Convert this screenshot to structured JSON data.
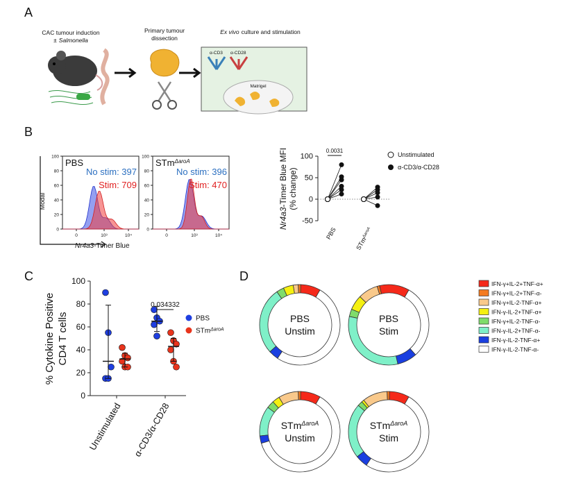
{
  "panel_a": {
    "label": "A",
    "induction": "CAC tumour induction",
    "salmonella_prefix": "±",
    "salmonella": "Salmonella",
    "dissection": [
      "Primary tumour",
      "dissection"
    ],
    "culture_italic": "Ex vivo",
    "culture": "culture and stimulation",
    "antibodies": [
      "α-CD3",
      "α-CD28"
    ],
    "matrigel": "Matrigel"
  },
  "panel_b": {
    "label": "B",
    "histograms": [
      {
        "title": "PBS",
        "no_stim": "No stim: 397",
        "stim": "Stim: 709"
      },
      {
        "title": "STm",
        "title_sup": "ΔaroA",
        "no_stim": "No stim: 396",
        "stim": "Stim: 470"
      }
    ],
    "hist_ylim": [
      0,
      100
    ],
    "hist_yticks": [
      0,
      20,
      40,
      60,
      80,
      100
    ],
    "hist_xticks": [
      "0",
      "10³",
      "10⁴"
    ],
    "y_label": "Modal",
    "x_label_italic": "Nr4a3",
    "x_label": "-Timer Blue",
    "mfi": {
      "y_label_italic": "Nr4a3",
      "y_label": "-Timer Blue MFI",
      "y_label2": "(% change)",
      "ylim": [
        -50,
        100
      ],
      "yticks": [
        -50,
        0,
        50,
        100
      ],
      "groups": [
        {
          "name": "PBS",
          "unstimulated": [
            0,
            0,
            0,
            0,
            0,
            0
          ],
          "stimulated": [
            80,
            52,
            45,
            30,
            22,
            12
          ]
        },
        {
          "name": "STm",
          "name_sup": "ΔaroA",
          "unstimulated": [
            0,
            0,
            0,
            0,
            0
          ],
          "stimulated": [
            28,
            22,
            15,
            5,
            -15
          ]
        }
      ],
      "p_value": "0.0031",
      "legend": [
        "Unstimulated",
        "α-CD3/α-CD28"
      ]
    }
  },
  "panel_c": {
    "label": "C",
    "y_label": [
      "% Cytokine Positive",
      "CD4 T cells"
    ],
    "ylim": [
      0,
      100
    ],
    "yticks": [
      0,
      20,
      40,
      60,
      80,
      100
    ],
    "categories": [
      "Unstimulated",
      "α-CD3/α-CD28"
    ],
    "series": [
      {
        "name": "PBS",
        "color": "#1f3fe0",
        "values": [
          [
            90,
            55,
            25,
            15,
            15
          ],
          [
            75,
            68,
            65,
            62,
            52
          ]
        ],
        "center": [
          30,
          65
        ],
        "low": [
          15,
          56
        ],
        "high": [
          79,
          78
        ]
      },
      {
        "name": "STm",
        "name_sup": "ΔaroA",
        "color": "#e8341c",
        "values": [
          [
            42,
            35,
            33,
            30,
            25,
            25
          ],
          [
            55,
            48,
            45,
            40,
            30,
            25
          ]
        ],
        "center": [
          32,
          43
        ],
        "low": [
          25,
          30
        ],
        "high": [
          37,
          50
        ]
      }
    ],
    "p_value": "0.034332"
  },
  "panel_d": {
    "label": "D",
    "legend": [
      {
        "name": "IFN-γ+IL-2+TNF-α+",
        "color": "#f5291a"
      },
      {
        "name": "IFN-γ+IL-2+TNF-α-",
        "color": "#f47b20"
      },
      {
        "name": "IFN-γ+IL-2-TNF-α+",
        "color": "#f9c98b"
      },
      {
        "name": "IFN-γ-IL-2+TNF-α+",
        "color": "#f5f011"
      },
      {
        "name": "IFN-γ+IL-2-TNF-α-",
        "color": "#7fdc6b"
      },
      {
        "name": "IFN-γ-IL-2+TNF-α-",
        "color": "#7ff0c8"
      },
      {
        "name": "IFN-γ-IL-2-TNF-α+",
        "color": "#1a3fe0"
      },
      {
        "name": "IFN-γ-IL-2-TNF-α-",
        "color": "#ffffff"
      }
    ],
    "rings": [
      {
        "line1": "PBS",
        "line2": "Unstim",
        "values": [
          8,
          1,
          2,
          4,
          3,
          27,
          4,
          51
        ]
      },
      {
        "line1": "PBS",
        "line2": "Stim",
        "values": [
          12,
          1,
          8,
          6,
          3,
          32,
          8,
          30
        ]
      },
      {
        "line1": "STm",
        "line1_sup": "ΔaroA",
        "line2": "Unstim",
        "values": [
          8,
          1,
          8,
          3,
          3,
          12,
          3,
          62
        ]
      },
      {
        "line1": "STm",
        "line1_sup": "ΔaroA",
        "line2": "Stim",
        "values": [
          8,
          1,
          10,
          1,
          2,
          22,
          5,
          51
        ]
      }
    ]
  }
}
